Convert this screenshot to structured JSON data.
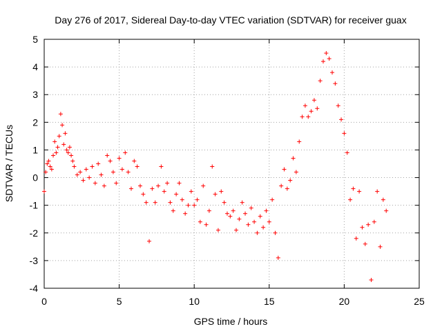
{
  "chart_data": {
    "type": "scatter",
    "title": "Day 276 of 2017, Sidereal Day-to-day VTEC variation (SDTVAR) for receiver guax",
    "xlabel": "GPS time / hours",
    "ylabel": "SDTVAR / TECUs",
    "xlim": [
      0,
      25
    ],
    "ylim": [
      -4,
      5
    ],
    "xticks": [
      "0",
      "5",
      "10",
      "15",
      "20",
      "25"
    ],
    "yticks": [
      "-4",
      "-3",
      "-2",
      "-1",
      "0",
      "1",
      "2",
      "3",
      "4",
      "5"
    ],
    "grid": true,
    "marker": "+",
    "color": "#ff0000",
    "series": [
      {
        "name": "guax SDTVAR",
        "x": [
          0.0,
          0.1,
          0.2,
          0.3,
          0.4,
          0.5,
          0.6,
          0.7,
          0.8,
          0.9,
          1.0,
          1.1,
          1.2,
          1.3,
          1.4,
          1.5,
          1.6,
          1.7,
          1.8,
          1.9,
          2.0,
          2.2,
          2.4,
          2.6,
          2.8,
          3.0,
          3.2,
          3.4,
          3.6,
          3.8,
          4.0,
          4.2,
          4.4,
          4.6,
          4.8,
          5.0,
          5.2,
          5.4,
          5.6,
          5.8,
          6.0,
          6.2,
          6.4,
          6.6,
          6.8,
          7.0,
          7.2,
          7.4,
          7.6,
          7.8,
          8.0,
          8.2,
          8.4,
          8.6,
          8.8,
          9.0,
          9.2,
          9.4,
          9.6,
          9.8,
          10.0,
          10.2,
          10.4,
          10.6,
          10.8,
          11.0,
          11.2,
          11.4,
          11.6,
          11.8,
          12.0,
          12.2,
          12.4,
          12.6,
          12.8,
          13.0,
          13.2,
          13.4,
          13.6,
          13.8,
          14.0,
          14.2,
          14.4,
          14.6,
          14.8,
          15.0,
          15.2,
          15.4,
          15.6,
          15.8,
          16.0,
          16.2,
          16.4,
          16.6,
          16.8,
          17.0,
          17.2,
          17.4,
          17.6,
          17.8,
          18.0,
          18.2,
          18.4,
          18.6,
          18.8,
          19.0,
          19.2,
          19.4,
          19.6,
          19.8,
          20.0,
          20.2,
          20.4,
          20.6,
          20.8,
          21.0,
          21.2,
          21.4,
          21.6,
          21.8,
          22.0,
          22.2,
          22.4,
          22.6,
          22.8
        ],
        "y": [
          -0.5,
          0.2,
          0.5,
          0.6,
          0.4,
          0.3,
          0.8,
          1.3,
          0.9,
          1.1,
          1.5,
          2.3,
          1.9,
          1.2,
          1.6,
          1.0,
          0.9,
          1.1,
          0.8,
          0.6,
          0.4,
          0.1,
          0.2,
          -0.1,
          0.3,
          0.0,
          0.4,
          -0.2,
          0.5,
          0.1,
          -0.3,
          0.8,
          0.6,
          0.2,
          -0.2,
          0.7,
          0.3,
          0.9,
          0.2,
          -0.4,
          0.6,
          0.4,
          -0.3,
          -0.6,
          -0.9,
          -2.3,
          -0.4,
          -0.9,
          -0.3,
          0.4,
          -0.5,
          -0.2,
          -0.9,
          -1.2,
          -0.6,
          -0.2,
          -0.8,
          -1.3,
          -1.0,
          -0.5,
          -1.0,
          -0.8,
          -1.6,
          -0.3,
          -1.7,
          -1.2,
          0.4,
          -0.6,
          -1.9,
          -0.5,
          -0.9,
          -1.3,
          -1.4,
          -1.2,
          -1.9,
          -1.5,
          -0.9,
          -1.3,
          -1.7,
          -1.1,
          -1.6,
          -2.0,
          -1.4,
          -1.8,
          -1.2,
          -1.6,
          -0.8,
          -2.0,
          -2.9,
          -0.3,
          0.3,
          -0.4,
          -0.1,
          0.7,
          0.2,
          1.3,
          2.2,
          2.6,
          2.2,
          2.4,
          2.8,
          2.5,
          3.5,
          4.2,
          4.5,
          4.3,
          3.8,
          3.4,
          2.6,
          2.1,
          1.6,
          0.9,
          -0.8,
          -0.4,
          -2.2,
          -0.5,
          -1.8,
          -2.4,
          -1.7,
          -3.7,
          -1.6,
          -0.5,
          -2.5,
          -0.8,
          -1.2
        ]
      }
    ]
  }
}
